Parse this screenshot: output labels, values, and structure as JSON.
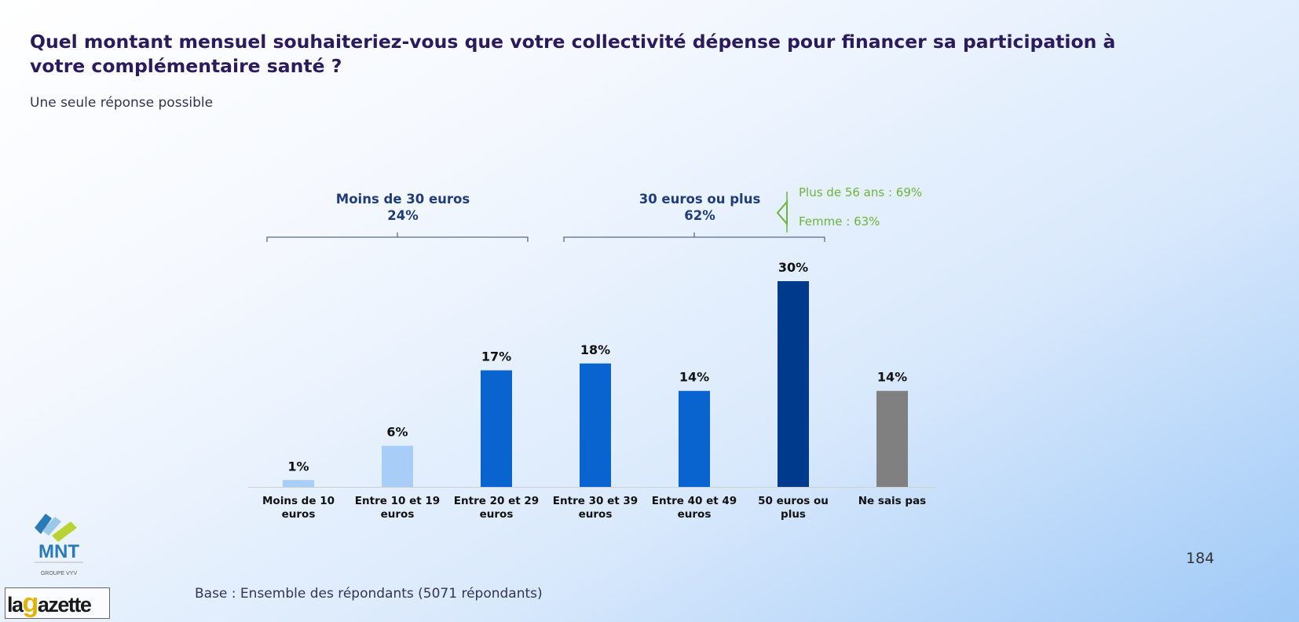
{
  "title": "Quel montant mensuel souhaiteriez-vous que votre collectivité dépense pour financer sa participation à votre complémentaire santé ?",
  "subtitle": "Une seule réponse possible",
  "page_number": "184",
  "base_note": "Base : Ensemble des répondants (5071 répondants)",
  "logos": {
    "mnt": "MNT",
    "mnt_sub": "GROUPE VYV",
    "gazette_prefix": "la",
    "gazette_g": "g",
    "gazette_suffix": "azette"
  },
  "colors": {
    "light_blue": "#a8cdf7",
    "mid_blue": "#0a64d0",
    "dark_blue": "#003a8c",
    "grey": "#808080",
    "group_label": "#1f3d7a",
    "callout_green": "#6db33f"
  },
  "chart_data": {
    "type": "bar",
    "title": "",
    "xlabel": "",
    "ylabel": "",
    "ylim": [
      0,
      30
    ],
    "grid": false,
    "categories": [
      [
        "Moins de 10",
        "euros"
      ],
      [
        "Entre 10 et 19",
        "euros"
      ],
      [
        "Entre 20 et 29",
        "euros"
      ],
      [
        "Entre 30 et 39",
        "euros"
      ],
      [
        "Entre 40 et 49",
        "euros"
      ],
      [
        "50 euros ou",
        "plus"
      ],
      [
        "Ne sais pas"
      ]
    ],
    "values": [
      1,
      6,
      17,
      18,
      14,
      30,
      14
    ],
    "value_labels": [
      "1%",
      "6%",
      "17%",
      "18%",
      "14%",
      "30%",
      "14%"
    ],
    "bar_colors": [
      "#a8cdf7",
      "#a8cdf7",
      "#0a64d0",
      "#0a64d0",
      "#0a64d0",
      "#003a8c",
      "#808080"
    ],
    "groups": [
      {
        "label": "Moins de 30 euros",
        "value": "24%",
        "from": 0,
        "to": 2
      },
      {
        "label": "30 euros ou plus",
        "value": "62%",
        "from": 3,
        "to": 5
      }
    ],
    "callouts": [
      "Plus de 56 ans  : 69%",
      "Femme : 63%"
    ]
  }
}
